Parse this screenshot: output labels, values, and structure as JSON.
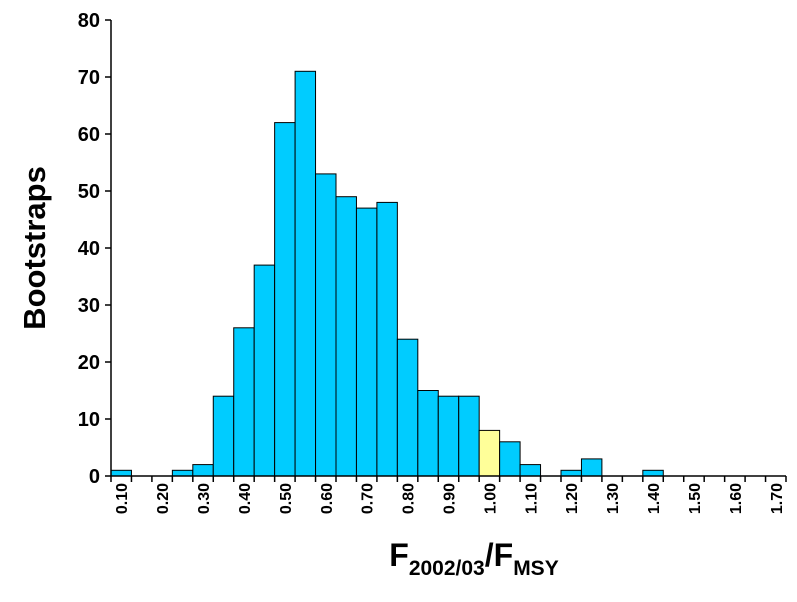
{
  "chart_data": {
    "type": "bar",
    "title": "",
    "ylabel": "Bootstraps",
    "xlabel": {
      "base": "F",
      "sub1": "2002/03",
      "slash": "/",
      "base2": "F",
      "sub2": "MSY"
    },
    "ylim": [
      0,
      80
    ],
    "yticks": [
      "0",
      "10",
      "20",
      "30",
      "40",
      "50",
      "60",
      "70",
      "80"
    ],
    "bin_width": 0.05,
    "bin_starts": [
      0.1,
      0.15,
      0.2,
      0.25,
      0.3,
      0.35,
      0.4,
      0.45,
      0.5,
      0.55,
      0.6,
      0.65,
      0.7,
      0.75,
      0.8,
      0.85,
      0.9,
      0.95,
      1.0,
      1.05,
      1.1,
      1.15,
      1.2,
      1.25,
      1.3,
      1.35,
      1.4,
      1.45,
      1.5,
      1.55,
      1.6,
      1.65,
      1.7
    ],
    "values": [
      1,
      0,
      0,
      1,
      2,
      14,
      26,
      37,
      62,
      71,
      53,
      49,
      47,
      48,
      24,
      15,
      14,
      14,
      8,
      6,
      2,
      0,
      1,
      3,
      0,
      0,
      1,
      0,
      0,
      0,
      0,
      0
    ],
    "xtick_labels": [
      "0.10",
      "0.20",
      "0.30",
      "0.40",
      "0.50",
      "0.60",
      "0.70",
      "0.80",
      "0.90",
      "1.00",
      "1.10",
      "1.20",
      "1.30",
      "1.40",
      "1.50",
      "1.60",
      "1.70"
    ],
    "highlight_bin_index": 18,
    "colors": {
      "bar": "#00CCFF",
      "highlight": "#FFFF99",
      "edge": "#000000"
    },
    "grid": false,
    "legend": "none"
  }
}
